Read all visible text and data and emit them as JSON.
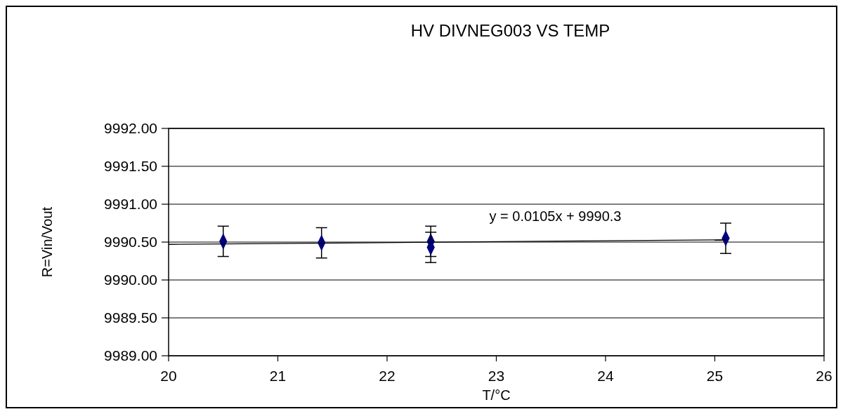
{
  "chart_data": {
    "type": "scatter",
    "title": "HV DIVNEG003 VS TEMP",
    "xlabel": "T/°C",
    "ylabel": "R=Vin/Vout",
    "xlim": [
      20,
      26
    ],
    "xticks": [
      20,
      21,
      22,
      23,
      24,
      25,
      26
    ],
    "ylim": [
      9989,
      9992
    ],
    "yticks": [
      {
        "value": 9989,
        "label": "9989.00"
      },
      {
        "value": 9989.5,
        "label": "9989.50"
      },
      {
        "value": 9990,
        "label": "9990.00"
      },
      {
        "value": 9990.5,
        "label": "9990.50"
      },
      {
        "value": 9991,
        "label": "9991.00"
      },
      {
        "value": 9991.5,
        "label": "9991.50"
      },
      {
        "value": 9992,
        "label": "9992.00"
      }
    ],
    "grid": "y",
    "series": [
      {
        "marker": "diamond",
        "color": "#000080",
        "x": [
          20.5,
          21.4,
          22.4,
          22.4,
          25.1
        ],
        "values": [
          9990.51,
          9990.49,
          9990.51,
          9990.43,
          9990.55
        ],
        "errors": [
          0.2,
          0.2,
          0.2,
          0.2,
          0.2
        ]
      },
      {
        "type": "line",
        "color": "#000000",
        "x": [
          20,
          25.1
        ],
        "values": [
          9990.47,
          9990.53
        ]
      }
    ],
    "annotations": [
      "y = 0.0105x + 9990.3"
    ]
  }
}
